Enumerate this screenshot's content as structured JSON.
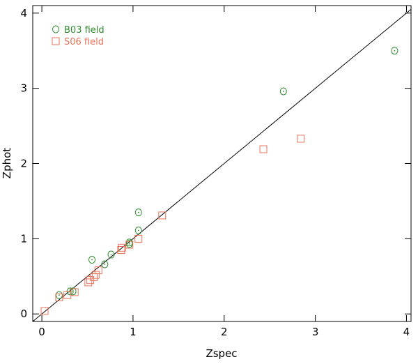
{
  "chart_data": {
    "type": "scatter",
    "xlabel": "Zspec",
    "ylabel": "Zphot",
    "xlim": [
      -0.1,
      4.05
    ],
    "ylim": [
      -0.1,
      4.1
    ],
    "xticks": [
      0,
      1,
      2,
      3,
      4
    ],
    "yticks": [
      0,
      1,
      2,
      3,
      4
    ],
    "xtick_labels": [
      "0",
      "1",
      "2",
      "3",
      "4"
    ],
    "ytick_labels": [
      "0",
      "1",
      "2",
      "3",
      "4"
    ],
    "grid": false,
    "reference_line": "y = x",
    "legend_position": "top-left",
    "series": [
      {
        "name": "B03 field",
        "marker": "circle",
        "color": "#2e8b2e",
        "points": [
          [
            0.19,
            0.25
          ],
          [
            0.31,
            0.3
          ],
          [
            0.34,
            0.3
          ],
          [
            0.55,
            0.72
          ],
          [
            0.69,
            0.66
          ],
          [
            0.76,
            0.79
          ],
          [
            0.96,
            0.95
          ],
          [
            0.96,
            0.93
          ],
          [
            1.06,
            1.11
          ],
          [
            1.06,
            1.35
          ],
          [
            2.65,
            2.96
          ],
          [
            3.87,
            3.5
          ]
        ]
      },
      {
        "name": "S06 field",
        "marker": "square",
        "color": "#e8735a",
        "points": [
          [
            0.03,
            0.04
          ],
          [
            0.19,
            0.22
          ],
          [
            0.28,
            0.25
          ],
          [
            0.36,
            0.29
          ],
          [
            0.51,
            0.42
          ],
          [
            0.53,
            0.45
          ],
          [
            0.57,
            0.49
          ],
          [
            0.59,
            0.52
          ],
          [
            0.62,
            0.58
          ],
          [
            0.87,
            0.85
          ],
          [
            0.88,
            0.88
          ],
          [
            0.96,
            0.92
          ],
          [
            1.06,
            1.0
          ],
          [
            1.32,
            1.31
          ],
          [
            2.43,
            2.19
          ],
          [
            2.84,
            2.33
          ]
        ]
      }
    ]
  }
}
